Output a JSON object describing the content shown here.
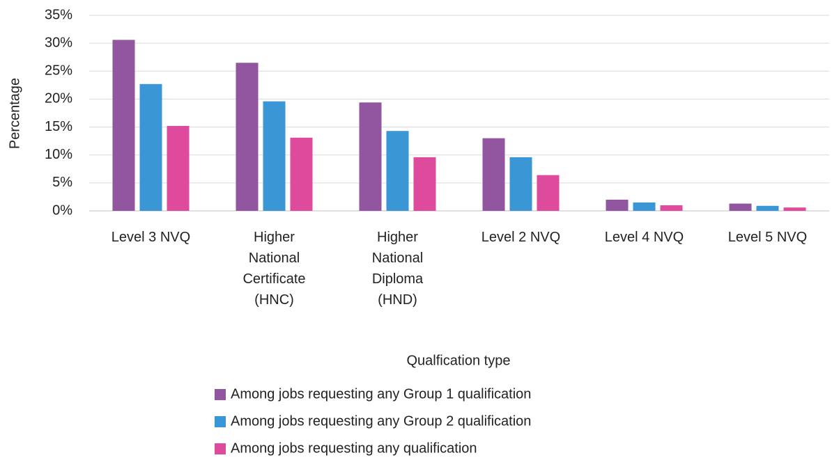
{
  "chart_data": {
    "type": "bar",
    "y_label": "Percentage",
    "x_label": "Qualfication type",
    "categories": [
      "Level 3 NVQ",
      "Higher National Certificate (HNC)",
      "Higher National Diploma (HND)",
      "Level 2 NVQ",
      "Level 4 NVQ",
      "Level 5 NVQ"
    ],
    "series": [
      {
        "name": "Among jobs requesting any Group 1 qualification",
        "color": "#9255a0",
        "values": [
          30.6,
          26.5,
          19.4,
          13.0,
          2.0,
          1.3
        ]
      },
      {
        "name": "Among jobs requesting any Group 2 qualification",
        "color": "#3a96d4",
        "values": [
          22.7,
          19.6,
          14.3,
          9.6,
          1.5,
          0.9
        ]
      },
      {
        "name": "Among jobs requesting any qualification",
        "color": "#de4a9c",
        "values": [
          15.2,
          13.1,
          9.6,
          6.4,
          1.0,
          0.6
        ]
      }
    ],
    "ylim": [
      0,
      35
    ],
    "yticks": [
      {
        "value": 0,
        "label": "0%"
      },
      {
        "value": 5,
        "label": "5%"
      },
      {
        "value": 10,
        "label": "10%"
      },
      {
        "value": 15,
        "label": "15%"
      },
      {
        "value": 20,
        "label": "20%"
      },
      {
        "value": 25,
        "label": "25%"
      },
      {
        "value": 30,
        "label": "30%"
      },
      {
        "value": 35,
        "label": "35%"
      }
    ],
    "grid": true,
    "legend": "bottom"
  }
}
